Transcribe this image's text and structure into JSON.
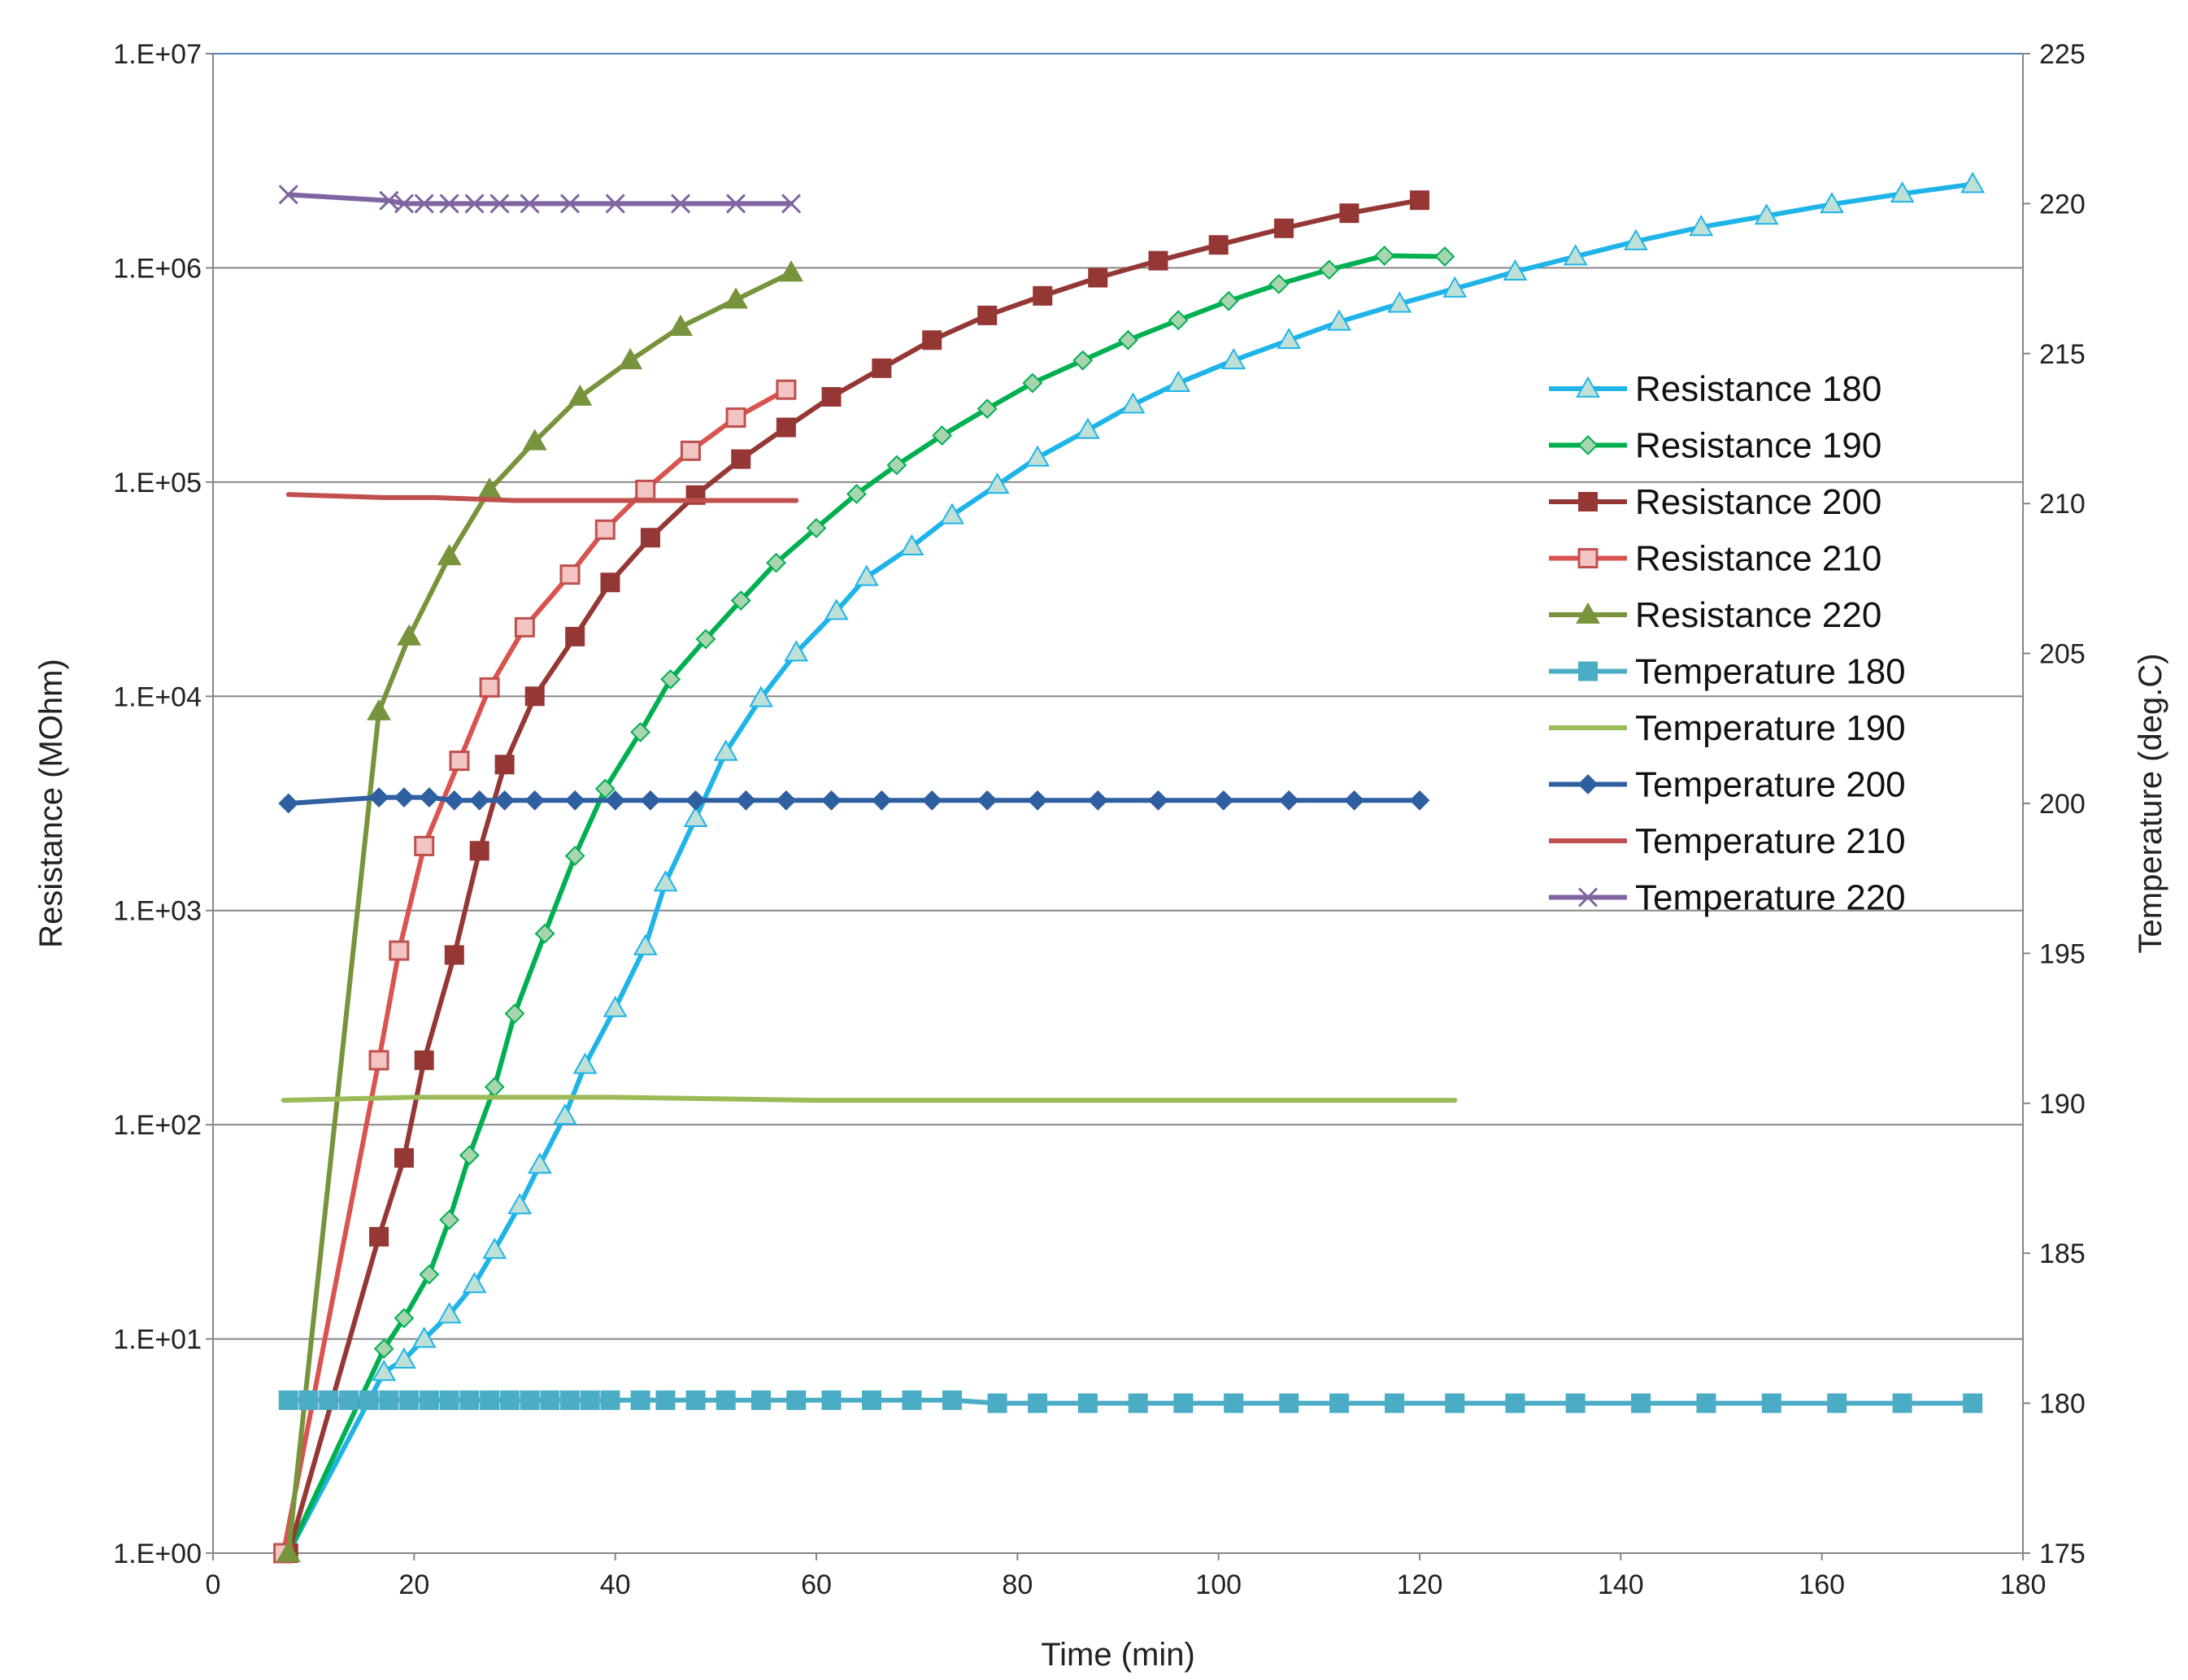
{
  "chart_data": {
    "type": "line",
    "title": "",
    "xlabel": "Time (min)",
    "ylabel": "Resistance (MOhm)",
    "y2label": "Temperature (deg.C)",
    "xlim": [
      0,
      180
    ],
    "ylim_log": [
      0,
      7
    ],
    "y2lim": [
      175,
      225
    ],
    "x_ticks": [
      "0",
      "20",
      "40",
      "60",
      "80",
      "100",
      "120",
      "140",
      "160",
      "180"
    ],
    "y_ticks": [
      "1.E+00",
      "1.E+01",
      "1.E+02",
      "1.E+03",
      "1.E+04",
      "1.E+05",
      "1.E+06",
      "1.E+07"
    ],
    "y2_ticks": [
      "175",
      "180",
      "185",
      "190",
      "195",
      "200",
      "205",
      "210",
      "215",
      "220",
      "225"
    ],
    "grid": true,
    "legend_position": "right",
    "series": [
      {
        "name": "Resistance 180",
        "axis": "left",
        "color": "#1fb4e8",
        "marker": "triangle",
        "marker_fill": "#bfe0d6",
        "marker_stroke": "#1fb4e8",
        "x": [
          7.5,
          17,
          19,
          21,
          23.5,
          26,
          28,
          30.5,
          32.5,
          35,
          37,
          40,
          43,
          45,
          48,
          51,
          54.5,
          58,
          62,
          65,
          69.5,
          73.5,
          78,
          82,
          87,
          91.5,
          96,
          101.5,
          107,
          112,
          118,
          123.5,
          129.5,
          135.5,
          141.5,
          148,
          154.5,
          161,
          168,
          175
        ],
        "y": [
          1,
          7,
          8,
          10,
          13,
          18,
          26,
          42,
          65,
          110,
          190,
          350,
          680,
          1350,
          2700,
          5500,
          9800,
          16000,
          25000,
          36000,
          50000,
          70000,
          97000,
          130000,
          175000,
          230000,
          290000,
          370000,
          460000,
          560000,
          680000,
          800000,
          960000,
          1130000,
          1330000,
          1550000,
          1750000,
          1980000,
          2220000,
          2460000
        ]
      },
      {
        "name": "Resistance 190",
        "axis": "left",
        "color": "#00b050",
        "marker": "diamond",
        "marker_fill": "#a9d4b0",
        "marker_stroke": "#00b050",
        "x": [
          7.5,
          17,
          19,
          21.5,
          23.5,
          25.5,
          28,
          30,
          33,
          36,
          39,
          42.5,
          45.5,
          49,
          52.5,
          56,
          60,
          64,
          68,
          72.5,
          77,
          81.5,
          86.5,
          91,
          96,
          101,
          106,
          111,
          116.5,
          122.5
        ],
        "y": [
          1,
          9,
          12.5,
          20,
          36,
          72,
          150,
          330,
          780,
          1800,
          3700,
          6800,
          12000,
          18500,
          28000,
          42000,
          61000,
          88000,
          120000,
          165000,
          220000,
          290000,
          370000,
          460000,
          570000,
          700000,
          840000,
          980000,
          1140000,
          1130000
        ]
      },
      {
        "name": "Resistance 200",
        "axis": "left",
        "color": "#953735",
        "marker": "square",
        "marker_fill": "#953735",
        "marker_stroke": "#953735",
        "x": [
          7.5,
          16.5,
          19,
          21,
          24,
          26.5,
          29,
          32,
          36,
          39.5,
          43.5,
          48,
          52.5,
          57,
          61.5,
          66.5,
          71.5,
          77,
          82.5,
          88,
          94,
          100,
          106.5,
          113,
          120
        ],
        "y": [
          1,
          30,
          70,
          200,
          620,
          1900,
          4800,
          10000,
          19000,
          34000,
          55000,
          87000,
          128000,
          180000,
          250000,
          340000,
          460000,
          600000,
          740000,
          900000,
          1080000,
          1280000,
          1530000,
          1800000,
          2070000
        ]
      },
      {
        "name": "Resistance 210",
        "axis": "left",
        "color": "#d9534f",
        "marker": "square-open",
        "marker_fill": "#f2c4c4",
        "marker_stroke": "#c0504d",
        "x": [
          7,
          16.5,
          18.5,
          21,
          24.5,
          27.5,
          31,
          35.5,
          39,
          43,
          47.5,
          52,
          57
        ],
        "y": [
          1,
          200,
          650,
          2000,
          5000,
          11000,
          21000,
          37000,
          60000,
          92000,
          140000,
          200000,
          270000
        ]
      },
      {
        "name": "Resistance 220",
        "axis": "left",
        "color": "#77933c",
        "marker": "triangle",
        "marker_fill": "#77933c",
        "marker_stroke": "#77933c",
        "x": [
          7.5,
          16.5,
          19.5,
          23.5,
          27.5,
          32,
          36.5,
          41.5,
          46.5,
          52,
          57.5
        ],
        "y": [
          1,
          8500,
          19000,
          45000,
          92000,
          155000,
          250000,
          370000,
          530000,
          710000,
          950000
        ]
      },
      {
        "name": "Temperature 180",
        "axis": "right",
        "color": "#4bacc6",
        "marker": "square",
        "marker_fill": "#4bacc6",
        "marker_stroke": "#4bacc6",
        "x": [
          7.5,
          9.5,
          11.5,
          13.5,
          15.5,
          17.5,
          19.5,
          21.5,
          23.5,
          25.5,
          27.5,
          29.5,
          31.5,
          33.5,
          35.5,
          37.5,
          39.5,
          42.5,
          45,
          48,
          51,
          54.5,
          58,
          61.5,
          65.5,
          69.5,
          73.5,
          78,
          82,
          87,
          92,
          96.5,
          101.5,
          107,
          112,
          117.5,
          123.5,
          129.5,
          135.5,
          142,
          148.5,
          155,
          161.5,
          168,
          175
        ],
        "y": [
          180.1,
          180.1,
          180.1,
          180.1,
          180.1,
          180.1,
          180.1,
          180.1,
          180.1,
          180.1,
          180.1,
          180.1,
          180.1,
          180.1,
          180.1,
          180.1,
          180.1,
          180.1,
          180.1,
          180.1,
          180.1,
          180.1,
          180.1,
          180.1,
          180.1,
          180.1,
          180.1,
          180.0,
          180.0,
          180.0,
          180.0,
          180.0,
          180.0,
          180.0,
          180.0,
          180.0,
          180.0,
          180.0,
          180.0,
          180.0,
          180.0,
          180.0,
          180.0,
          180.0,
          180.0
        ]
      },
      {
        "name": "Temperature 190",
        "axis": "right",
        "color": "#9bbb59",
        "marker": "none",
        "x": [
          7,
          20,
          40,
          60,
          80,
          100,
          123.5
        ],
        "y": [
          190.1,
          190.2,
          190.2,
          190.1,
          190.1,
          190.1,
          190.1
        ]
      },
      {
        "name": "Temperature 200",
        "axis": "right",
        "color": "#2e5fa1",
        "marker": "diamond",
        "marker_fill": "#2e5fa1",
        "marker_stroke": "#2e5fa1",
        "x": [
          7.5,
          16.5,
          19,
          21.5,
          24,
          26.5,
          29,
          32,
          36,
          40,
          43.5,
          48,
          53,
          57,
          61.5,
          66.5,
          71.5,
          77,
          82,
          88,
          94,
          100.5,
          107,
          113.5,
          120
        ],
        "y": [
          200.0,
          200.2,
          200.2,
          200.2,
          200.1,
          200.1,
          200.1,
          200.1,
          200.1,
          200.1,
          200.1,
          200.1,
          200.1,
          200.1,
          200.1,
          200.1,
          200.1,
          200.1,
          200.1,
          200.1,
          200.1,
          200.1,
          200.1,
          200.1,
          200.1
        ]
      },
      {
        "name": "Temperature 210",
        "axis": "right",
        "color": "#c0504d",
        "marker": "none",
        "x": [
          7.5,
          17,
          22,
          30,
          40,
          50,
          58
        ],
        "y": [
          210.3,
          210.2,
          210.2,
          210.1,
          210.1,
          210.1,
          210.1
        ]
      },
      {
        "name": "Temperature 220",
        "axis": "right",
        "color": "#7f64a0",
        "marker": "x",
        "marker_stroke": "#7f64a0",
        "x": [
          7.5,
          17.5,
          19,
          21,
          23.5,
          26,
          28.5,
          31.5,
          35.5,
          40,
          46.5,
          52,
          57.5
        ],
        "y": [
          220.3,
          220.1,
          220.0,
          220.0,
          220.0,
          220.0,
          220.0,
          220.0,
          220.0,
          220.0,
          220.0,
          220.0,
          220.0
        ]
      }
    ]
  }
}
